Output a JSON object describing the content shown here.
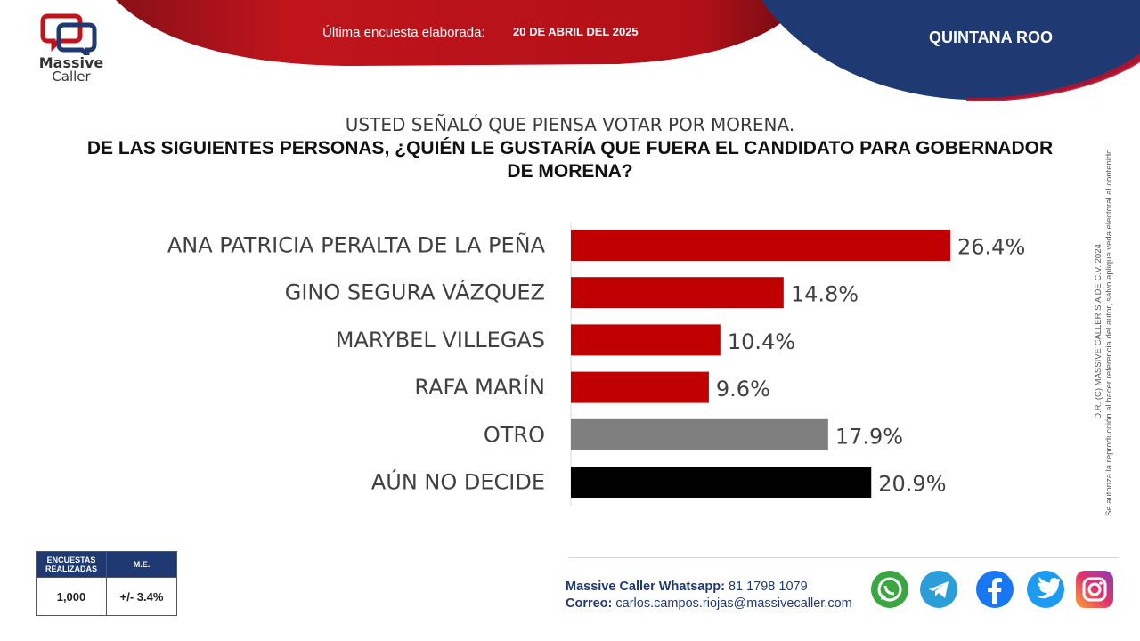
{
  "header": {
    "brand_line1": "Massive",
    "brand_line2": "Caller",
    "survey_label": "Última encuesta elaborada:",
    "survey_date": "20 DE ABRIL DEL 2025",
    "region": "QUINTANA ROO"
  },
  "question": {
    "line1": "USTED SEÑALÓ QUE PIENSA VOTAR POR MORENA.",
    "line2": "DE LAS SIGUIENTES PERSONAS, ¿QUIÉN LE GUSTARÍA QUE FUERA EL CANDIDATO PARA GOBERNADOR DE MORENA?"
  },
  "chart_data": {
    "type": "bar",
    "orientation": "horizontal",
    "categories": [
      "ANA PATRICIA PERALTA DE LA PEÑA",
      "GINO SEGURA VÁZQUEZ",
      "MARYBEL VILLEGAS",
      "RAFA MARÍN",
      "OTRO",
      "AÚN NO DECIDE"
    ],
    "values": [
      26.4,
      14.8,
      10.4,
      9.6,
      17.9,
      20.9
    ],
    "value_labels": [
      "26.4%",
      "14.8%",
      "10.4%",
      "9.6%",
      "17.9%",
      "20.9%"
    ],
    "colors": [
      "#c00000",
      "#c00000",
      "#c00000",
      "#c00000",
      "#7f7f7f",
      "#000000"
    ],
    "xlim": [
      0,
      30
    ],
    "grid": false,
    "legend": "none"
  },
  "copyright": {
    "line1": "D.R. (C) MASSIVE CALLER S.A DE C.V. 2024",
    "line2": "Se autoriza la reproducción al hacer referencia del autor, salvo aplique veda electoral al contenido."
  },
  "stats": {
    "col1_header": "ENCUESTAS REALIZADAS",
    "col2_header": "M.E.",
    "col1_value": "1,000",
    "col2_value": "+/- 3.4%"
  },
  "contact": {
    "whatsapp_label": "Massive Caller Whatsapp:",
    "whatsapp_value": "81 1798 1079",
    "email_label": "Correo:",
    "email_value": "carlos.campos.riojas@massivecaller.com"
  },
  "social_icons": [
    "whatsapp-icon",
    "telegram-icon",
    "facebook-icon",
    "twitter-icon",
    "instagram-icon"
  ],
  "colors": {
    "brand_red": "#c00000",
    "brand_navy": "#1f3a73"
  }
}
